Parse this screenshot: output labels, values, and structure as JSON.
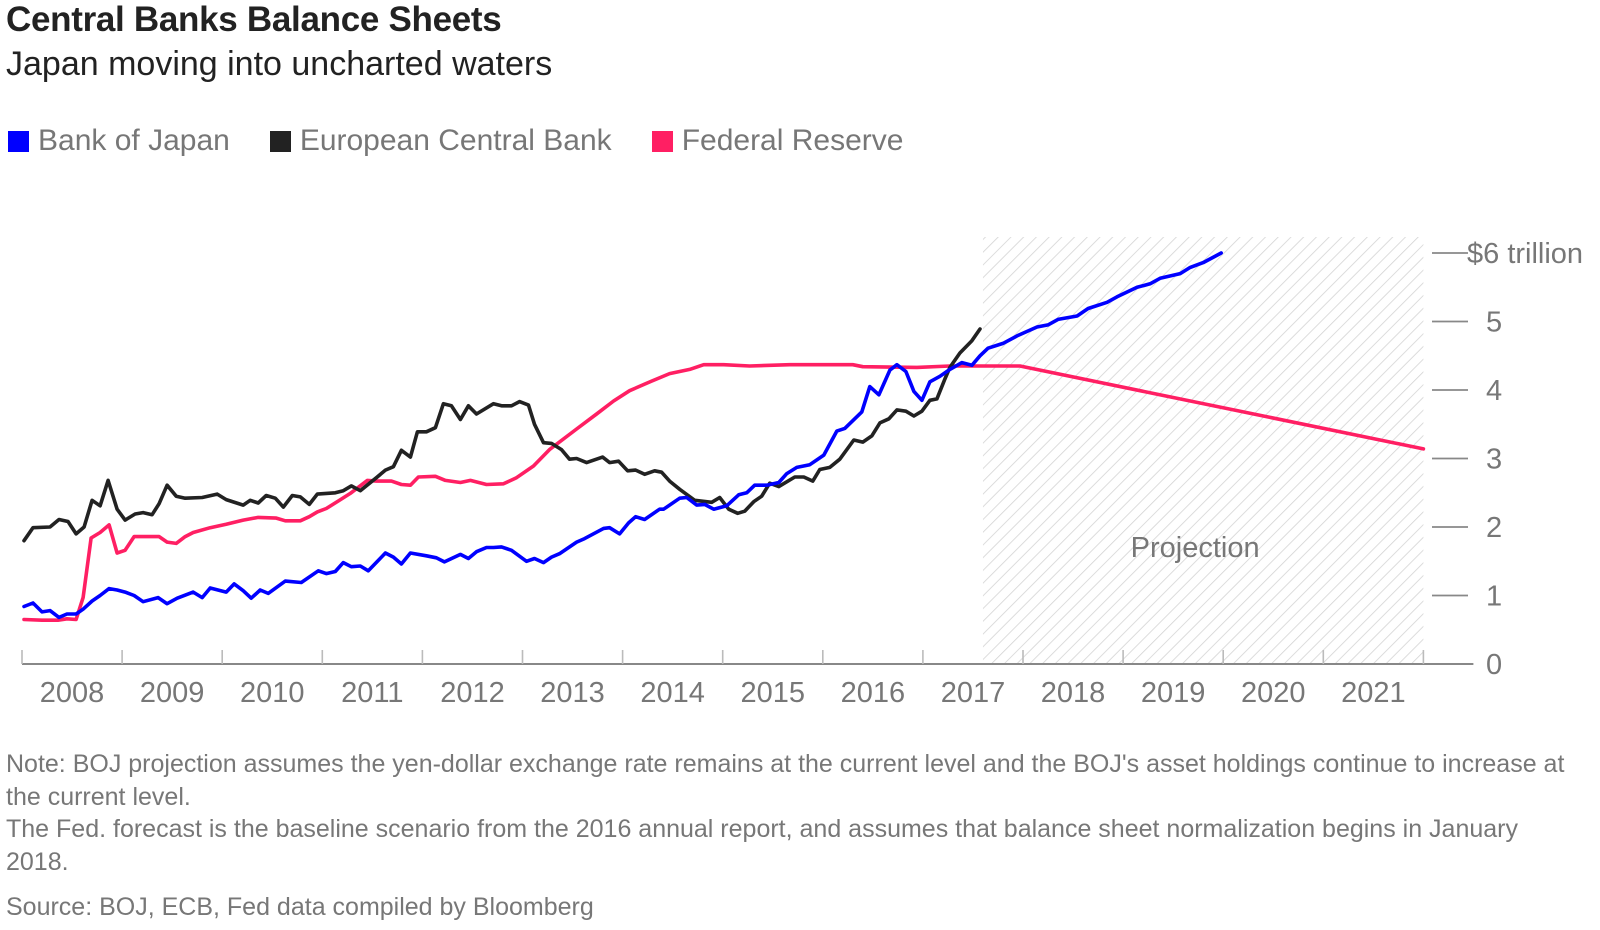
{
  "header": {
    "title": "Central Banks Balance Sheets",
    "subtitle": "Japan moving into uncharted waters"
  },
  "legend": [
    {
      "label": "Bank of Japan",
      "color": "#0000FF"
    },
    {
      "label": "European Central Bank",
      "color": "#222222"
    },
    {
      "label": "Federal Reserve",
      "color": "#FF1F63"
    }
  ],
  "notes": [
    "Note: BOJ projection assumes the yen-dollar exchange rate remains at the current level and the BOJ's asset holdings continue to increase at the current level.",
    "The Fed. forecast is the baseline scenario from the 2016 annual report, and assumes that balance sheet normalization begins in January 2018."
  ],
  "source": "Source: BOJ, ECB, Fed data compiled by Bloomberg",
  "chart_data": {
    "type": "line",
    "title": "Central Banks Balance Sheets",
    "subtitle": "Japan moving into uncharted waters",
    "xlabel": "",
    "ylabel": "$ trillion",
    "xlim": [
      2008,
      2022
    ],
    "ylim": [
      0,
      6
    ],
    "x_ticks": [
      "2008",
      "2009",
      "2010",
      "2011",
      "2012",
      "2013",
      "2014",
      "2015",
      "2016",
      "2017",
      "2018",
      "2019",
      "2020",
      "2021"
    ],
    "y_ticks": [
      {
        "value": 0,
        "label": "0"
      },
      {
        "value": 1,
        "label": "1"
      },
      {
        "value": 2,
        "label": "2"
      },
      {
        "value": 3,
        "label": "3"
      },
      {
        "value": 4,
        "label": "4"
      },
      {
        "value": 5,
        "label": "5"
      },
      {
        "value": 6,
        "label": "$6 trillion"
      }
    ],
    "y_axis_position": "right",
    "grid": false,
    "legend_position": "top-left",
    "projection": {
      "label": "Projection",
      "start": 2017.6,
      "end": 2022.0
    },
    "series": [
      {
        "name": "Bank of Japan",
        "color": "#0000FF",
        "points": [
          [
            2008.02,
            0.84
          ],
          [
            2008.11,
            0.89
          ],
          [
            2008.2,
            0.76
          ],
          [
            2008.28,
            0.78
          ],
          [
            2008.37,
            0.68
          ],
          [
            2008.45,
            0.73
          ],
          [
            2008.54,
            0.73
          ],
          [
            2008.61,
            0.8
          ],
          [
            2008.7,
            0.92
          ],
          [
            2008.78,
            1.0
          ],
          [
            2008.87,
            1.1
          ],
          [
            2008.95,
            1.08
          ],
          [
            2009.03,
            1.05
          ],
          [
            2009.12,
            1.0
          ],
          [
            2009.21,
            0.91
          ],
          [
            2009.36,
            0.97
          ],
          [
            2009.45,
            0.88
          ],
          [
            2009.55,
            0.96
          ],
          [
            2009.71,
            1.05
          ],
          [
            2009.8,
            0.97
          ],
          [
            2009.88,
            1.11
          ],
          [
            2010.04,
            1.05
          ],
          [
            2010.12,
            1.17
          ],
          [
            2010.21,
            1.07
          ],
          [
            2010.29,
            0.96
          ],
          [
            2010.38,
            1.08
          ],
          [
            2010.46,
            1.03
          ],
          [
            2010.63,
            1.21
          ],
          [
            2010.79,
            1.19
          ],
          [
            2010.96,
            1.36
          ],
          [
            2011.04,
            1.32
          ],
          [
            2011.13,
            1.35
          ],
          [
            2011.21,
            1.48
          ],
          [
            2011.29,
            1.42
          ],
          [
            2011.38,
            1.43
          ],
          [
            2011.46,
            1.36
          ],
          [
            2011.63,
            1.62
          ],
          [
            2011.71,
            1.56
          ],
          [
            2011.79,
            1.46
          ],
          [
            2011.88,
            1.62
          ],
          [
            2012.04,
            1.58
          ],
          [
            2012.14,
            1.55
          ],
          [
            2012.22,
            1.49
          ],
          [
            2012.38,
            1.6
          ],
          [
            2012.46,
            1.54
          ],
          [
            2012.54,
            1.64
          ],
          [
            2012.64,
            1.7
          ],
          [
            2012.71,
            1.7
          ],
          [
            2012.79,
            1.71
          ],
          [
            2012.89,
            1.66
          ],
          [
            2013.04,
            1.5
          ],
          [
            2013.12,
            1.54
          ],
          [
            2013.21,
            1.48
          ],
          [
            2013.29,
            1.56
          ],
          [
            2013.37,
            1.61
          ],
          [
            2013.54,
            1.78
          ],
          [
            2013.62,
            1.83
          ],
          [
            2013.81,
            1.98
          ],
          [
            2013.87,
            1.99
          ],
          [
            2013.97,
            1.9
          ],
          [
            2014.06,
            2.06
          ],
          [
            2014.13,
            2.15
          ],
          [
            2014.22,
            2.11
          ],
          [
            2014.37,
            2.26
          ],
          [
            2014.41,
            2.26
          ],
          [
            2014.57,
            2.42
          ],
          [
            2014.64,
            2.43
          ],
          [
            2014.74,
            2.32
          ],
          [
            2014.82,
            2.33
          ],
          [
            2014.91,
            2.26
          ],
          [
            2015.04,
            2.31
          ],
          [
            2015.16,
            2.47
          ],
          [
            2015.24,
            2.5
          ],
          [
            2015.32,
            2.61
          ],
          [
            2015.44,
            2.61
          ],
          [
            2015.56,
            2.65
          ],
          [
            2015.64,
            2.78
          ],
          [
            2015.74,
            2.87
          ],
          [
            2015.87,
            2.91
          ],
          [
            2016.01,
            3.05
          ],
          [
            2016.14,
            3.4
          ],
          [
            2016.22,
            3.44
          ],
          [
            2016.39,
            3.68
          ],
          [
            2016.47,
            4.05
          ],
          [
            2016.56,
            3.93
          ],
          [
            2016.67,
            4.29
          ],
          [
            2016.74,
            4.37
          ],
          [
            2016.83,
            4.27
          ],
          [
            2016.91,
            3.98
          ],
          [
            2016.99,
            3.85
          ],
          [
            2017.07,
            4.12
          ],
          [
            2017.17,
            4.2
          ],
          [
            2017.27,
            4.3
          ],
          [
            2017.39,
            4.4
          ],
          [
            2017.49,
            4.36
          ],
          [
            2017.57,
            4.5
          ],
          [
            2017.65,
            4.61
          ],
          [
            2017.8,
            4.68
          ],
          [
            2017.94,
            4.79
          ],
          [
            2018.14,
            4.92
          ],
          [
            2018.25,
            4.95
          ],
          [
            2018.35,
            5.03
          ],
          [
            2018.54,
            5.08
          ],
          [
            2018.65,
            5.19
          ],
          [
            2018.84,
            5.28
          ],
          [
            2018.94,
            5.36
          ],
          [
            2019.14,
            5.5
          ],
          [
            2019.27,
            5.55
          ],
          [
            2019.37,
            5.63
          ],
          [
            2019.57,
            5.7
          ],
          [
            2019.67,
            5.79
          ],
          [
            2019.8,
            5.86
          ],
          [
            2019.98,
            6.0
          ]
        ]
      },
      {
        "name": "European Central Bank",
        "color": "#222222",
        "points": [
          [
            2008.02,
            1.8
          ],
          [
            2008.11,
            1.99
          ],
          [
            2008.28,
            2.0
          ],
          [
            2008.37,
            2.11
          ],
          [
            2008.46,
            2.08
          ],
          [
            2008.54,
            1.9
          ],
          [
            2008.62,
            2.0
          ],
          [
            2008.7,
            2.39
          ],
          [
            2008.78,
            2.31
          ],
          [
            2008.86,
            2.68
          ],
          [
            2008.95,
            2.26
          ],
          [
            2009.03,
            2.1
          ],
          [
            2009.13,
            2.19
          ],
          [
            2009.21,
            2.21
          ],
          [
            2009.3,
            2.18
          ],
          [
            2009.37,
            2.34
          ],
          [
            2009.45,
            2.61
          ],
          [
            2009.54,
            2.45
          ],
          [
            2009.63,
            2.42
          ],
          [
            2009.8,
            2.43
          ],
          [
            2009.95,
            2.48
          ],
          [
            2010.04,
            2.4
          ],
          [
            2010.21,
            2.32
          ],
          [
            2010.28,
            2.39
          ],
          [
            2010.36,
            2.35
          ],
          [
            2010.44,
            2.46
          ],
          [
            2010.53,
            2.42
          ],
          [
            2010.61,
            2.29
          ],
          [
            2010.7,
            2.46
          ],
          [
            2010.78,
            2.44
          ],
          [
            2010.87,
            2.33
          ],
          [
            2010.95,
            2.48
          ],
          [
            2011.13,
            2.5
          ],
          [
            2011.21,
            2.53
          ],
          [
            2011.29,
            2.6
          ],
          [
            2011.38,
            2.53
          ],
          [
            2011.54,
            2.72
          ],
          [
            2011.63,
            2.83
          ],
          [
            2011.71,
            2.88
          ],
          [
            2011.79,
            3.12
          ],
          [
            2011.88,
            3.02
          ],
          [
            2011.95,
            3.39
          ],
          [
            2012.04,
            3.39
          ],
          [
            2012.13,
            3.45
          ],
          [
            2012.21,
            3.8
          ],
          [
            2012.29,
            3.77
          ],
          [
            2012.38,
            3.57
          ],
          [
            2012.46,
            3.77
          ],
          [
            2012.54,
            3.65
          ],
          [
            2012.71,
            3.8
          ],
          [
            2012.79,
            3.77
          ],
          [
            2012.89,
            3.77
          ],
          [
            2012.97,
            3.83
          ],
          [
            2013.06,
            3.78
          ],
          [
            2013.12,
            3.5
          ],
          [
            2013.21,
            3.23
          ],
          [
            2013.29,
            3.22
          ],
          [
            2013.39,
            3.13
          ],
          [
            2013.47,
            2.99
          ],
          [
            2013.54,
            3.0
          ],
          [
            2013.64,
            2.94
          ],
          [
            2013.8,
            3.02
          ],
          [
            2013.87,
            2.94
          ],
          [
            2013.96,
            2.96
          ],
          [
            2014.05,
            2.82
          ],
          [
            2014.13,
            2.83
          ],
          [
            2014.22,
            2.77
          ],
          [
            2014.32,
            2.82
          ],
          [
            2014.39,
            2.8
          ],
          [
            2014.47,
            2.67
          ],
          [
            2014.57,
            2.55
          ],
          [
            2014.72,
            2.39
          ],
          [
            2014.89,
            2.36
          ],
          [
            2014.97,
            2.43
          ],
          [
            2015.06,
            2.26
          ],
          [
            2015.15,
            2.2
          ],
          [
            2015.22,
            2.23
          ],
          [
            2015.31,
            2.37
          ],
          [
            2015.39,
            2.45
          ],
          [
            2015.47,
            2.64
          ],
          [
            2015.56,
            2.59
          ],
          [
            2015.72,
            2.73
          ],
          [
            2015.81,
            2.73
          ],
          [
            2015.9,
            2.67
          ],
          [
            2015.97,
            2.84
          ],
          [
            2016.07,
            2.87
          ],
          [
            2016.17,
            2.99
          ],
          [
            2016.31,
            3.27
          ],
          [
            2016.4,
            3.24
          ],
          [
            2016.49,
            3.33
          ],
          [
            2016.57,
            3.52
          ],
          [
            2016.66,
            3.58
          ],
          [
            2016.74,
            3.71
          ],
          [
            2016.83,
            3.69
          ],
          [
            2016.91,
            3.62
          ],
          [
            2016.99,
            3.69
          ],
          [
            2017.07,
            3.85
          ],
          [
            2017.14,
            3.87
          ],
          [
            2017.22,
            4.16
          ],
          [
            2017.27,
            4.33
          ],
          [
            2017.37,
            4.54
          ],
          [
            2017.49,
            4.72
          ],
          [
            2017.57,
            4.89
          ]
        ]
      },
      {
        "name": "Federal Reserve",
        "color": "#FF1F63",
        "points": [
          [
            2008.02,
            0.65
          ],
          [
            2008.2,
            0.64
          ],
          [
            2008.36,
            0.64
          ],
          [
            2008.45,
            0.66
          ],
          [
            2008.54,
            0.65
          ],
          [
            2008.61,
            0.97
          ],
          [
            2008.69,
            1.84
          ],
          [
            2008.78,
            1.92
          ],
          [
            2008.87,
            2.03
          ],
          [
            2008.95,
            1.62
          ],
          [
            2009.03,
            1.66
          ],
          [
            2009.12,
            1.86
          ],
          [
            2009.28,
            1.86
          ],
          [
            2009.37,
            1.86
          ],
          [
            2009.45,
            1.78
          ],
          [
            2009.54,
            1.76
          ],
          [
            2009.63,
            1.86
          ],
          [
            2009.71,
            1.92
          ],
          [
            2009.88,
            1.99
          ],
          [
            2010.04,
            2.04
          ],
          [
            2010.21,
            2.1
          ],
          [
            2010.36,
            2.14
          ],
          [
            2010.54,
            2.13
          ],
          [
            2010.63,
            2.09
          ],
          [
            2010.78,
            2.09
          ],
          [
            2010.87,
            2.15
          ],
          [
            2010.95,
            2.22
          ],
          [
            2011.04,
            2.27
          ],
          [
            2011.16,
            2.38
          ],
          [
            2011.28,
            2.49
          ],
          [
            2011.45,
            2.68
          ],
          [
            2011.54,
            2.67
          ],
          [
            2011.69,
            2.67
          ],
          [
            2011.79,
            2.62
          ],
          [
            2011.88,
            2.61
          ],
          [
            2011.96,
            2.73
          ],
          [
            2012.13,
            2.74
          ],
          [
            2012.23,
            2.68
          ],
          [
            2012.38,
            2.65
          ],
          [
            2012.48,
            2.68
          ],
          [
            2012.64,
            2.62
          ],
          [
            2012.81,
            2.63
          ],
          [
            2012.94,
            2.72
          ],
          [
            2013.11,
            2.89
          ],
          [
            2013.27,
            3.13
          ],
          [
            2013.54,
            3.43
          ],
          [
            2013.74,
            3.65
          ],
          [
            2013.91,
            3.84
          ],
          [
            2014.07,
            3.99
          ],
          [
            2014.29,
            4.13
          ],
          [
            2014.47,
            4.24
          ],
          [
            2014.67,
            4.3
          ],
          [
            2014.81,
            4.37
          ],
          [
            2015.01,
            4.37
          ],
          [
            2015.27,
            4.35
          ],
          [
            2015.67,
            4.37
          ],
          [
            2016.07,
            4.37
          ],
          [
            2016.3,
            4.37
          ],
          [
            2016.4,
            4.34
          ],
          [
            2016.94,
            4.33
          ],
          [
            2017.27,
            4.35
          ],
          [
            2017.57,
            4.35
          ],
          [
            2017.97,
            4.35
          ],
          [
            2022.0,
            3.14
          ]
        ]
      }
    ]
  }
}
